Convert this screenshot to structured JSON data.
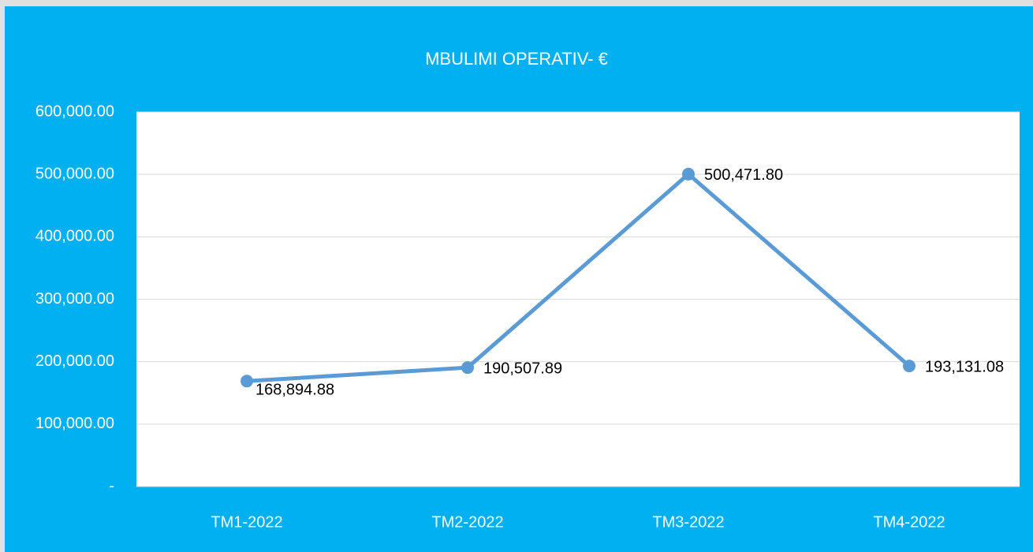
{
  "chart_data": {
    "type": "line",
    "title": "MBULIMI OPERATIV- €",
    "categories": [
      "TM1-2022",
      "TM2-2022",
      "TM3-2022",
      "TM4-2022"
    ],
    "values": [
      168894.88,
      190507.89,
      500471.8,
      193131.08
    ],
    "value_labels": [
      "168,894.88",
      "190,507.89",
      "500,471.80",
      "193,131.08"
    ],
    "color": "#5b9bd5",
    "ylim": [
      0,
      600000
    ],
    "yticks": [
      {
        "value": 0,
        "label": "-"
      },
      {
        "value": 100000,
        "label": "100,000.00"
      },
      {
        "value": 200000,
        "label": "200,000.00"
      },
      {
        "value": 300000,
        "label": "300,000.00"
      },
      {
        "value": 400000,
        "label": "400,000.00"
      },
      {
        "value": 500000,
        "label": "500,000.00"
      },
      {
        "value": 600000,
        "label": "600,000.00"
      }
    ],
    "grid": true
  }
}
